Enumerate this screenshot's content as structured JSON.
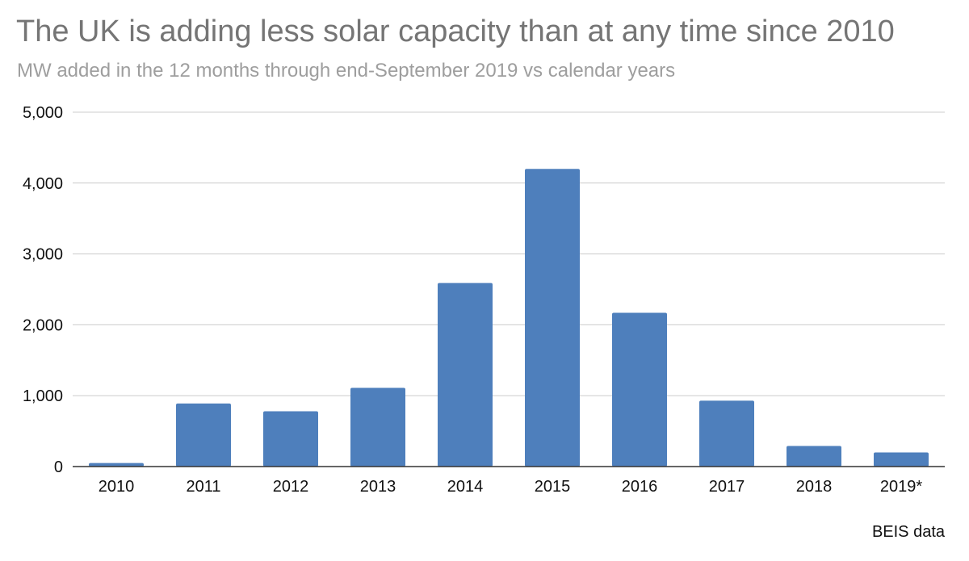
{
  "header": {
    "title": "The UK is adding less solar capacity than at any time since 2010",
    "subtitle": "MW added in the 12 months through end-September 2019 vs calendar years"
  },
  "footer": {
    "source": "BEIS data"
  },
  "colors": {
    "bar": "#4e7fbc",
    "grid": "#cccccc",
    "axis": "#333333"
  },
  "chart_data": {
    "type": "bar",
    "title": "The UK is adding less solar capacity than at any time since 2010",
    "subtitle": "MW added in the 12 months through end-September 2019 vs calendar years",
    "xlabel": "",
    "ylabel": "",
    "categories": [
      "2010",
      "2011",
      "2012",
      "2013",
      "2014",
      "2015",
      "2016",
      "2017",
      "2018",
      "2019*"
    ],
    "values": [
      50,
      890,
      780,
      1110,
      2590,
      4200,
      2170,
      930,
      290,
      200
    ],
    "ylim": [
      0,
      5000
    ],
    "yticks": [
      0,
      1000,
      2000,
      3000,
      4000,
      5000
    ],
    "ytick_labels": [
      "0",
      "1,000",
      "2,000",
      "3,000",
      "4,000",
      "5,000"
    ],
    "grid": true,
    "legend": "none"
  }
}
